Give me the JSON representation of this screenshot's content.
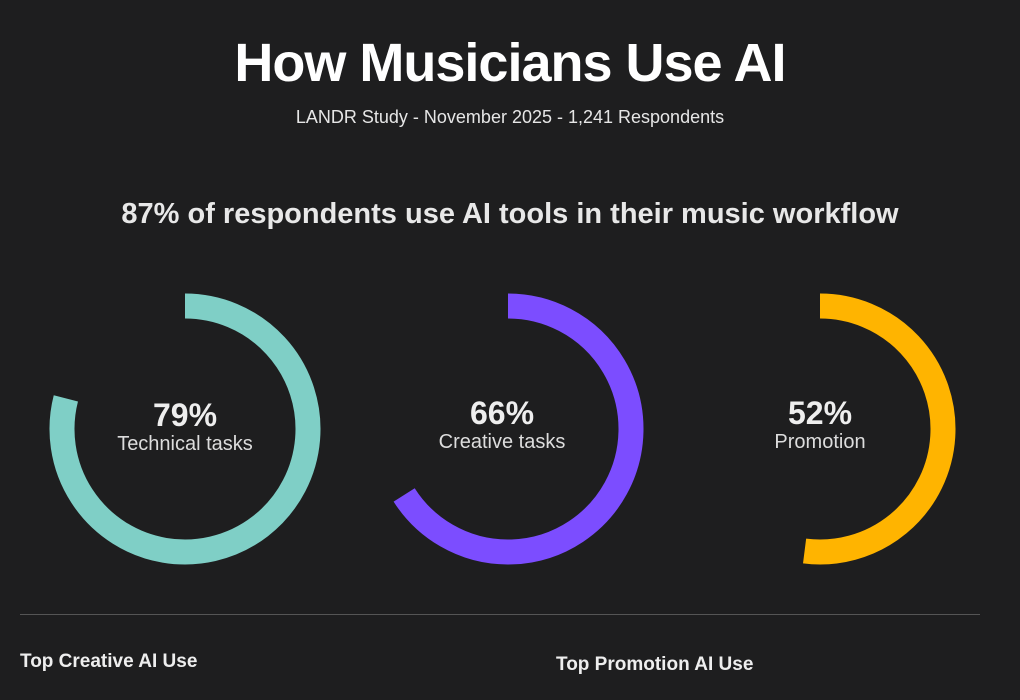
{
  "header": {
    "title": "How Musicians Use AI",
    "subtitle": "LANDR Study - November 2025 - 1,241 Respondents",
    "headline": "87% of respondents use AI tools in their music workflow"
  },
  "chart_data": {
    "type": "pie",
    "subtype": "donut-progress",
    "series": [
      {
        "name": "Technical tasks",
        "value": 79,
        "label": "79%",
        "color": "#7fcfc6"
      },
      {
        "name": "Creative tasks",
        "value": 66,
        "label": "66%",
        "color": "#7c4dff"
      },
      {
        "name": "Promotion",
        "value": 52,
        "label": "52%",
        "color": "#ffb400"
      }
    ],
    "max": 100
  },
  "sections": {
    "creative": "Top Creative AI Use",
    "promotion": "Top Promotion AI Use"
  }
}
